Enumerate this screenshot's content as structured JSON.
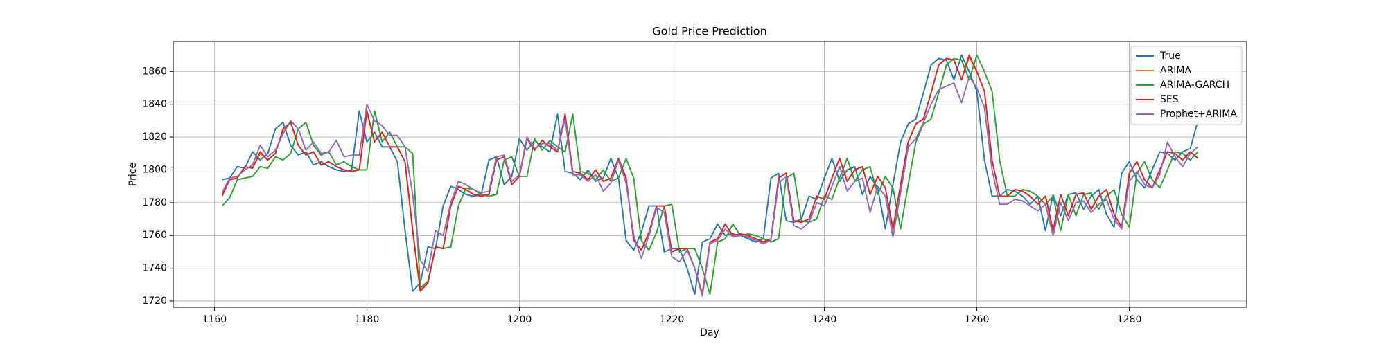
{
  "chart_data": {
    "type": "line",
    "title": "Gold Price Prediction",
    "xlabel": "Day",
    "ylabel": "Price",
    "x": [
      1161,
      1162,
      1163,
      1164,
      1165,
      1166,
      1167,
      1168,
      1169,
      1170,
      1171,
      1172,
      1173,
      1174,
      1175,
      1176,
      1177,
      1178,
      1179,
      1180,
      1181,
      1182,
      1183,
      1184,
      1185,
      1186,
      1187,
      1188,
      1189,
      1190,
      1191,
      1192,
      1193,
      1194,
      1195,
      1196,
      1197,
      1198,
      1199,
      1200,
      1201,
      1202,
      1203,
      1204,
      1205,
      1206,
      1207,
      1208,
      1209,
      1210,
      1211,
      1212,
      1213,
      1214,
      1215,
      1216,
      1217,
      1218,
      1219,
      1220,
      1221,
      1222,
      1223,
      1224,
      1225,
      1226,
      1227,
      1228,
      1229,
      1230,
      1231,
      1232,
      1233,
      1234,
      1235,
      1236,
      1237,
      1238,
      1239,
      1240,
      1241,
      1242,
      1243,
      1244,
      1245,
      1246,
      1247,
      1248,
      1249,
      1250,
      1251,
      1252,
      1253,
      1254,
      1255,
      1256,
      1257,
      1258,
      1259,
      1260,
      1261,
      1262,
      1263,
      1264,
      1265,
      1266,
      1267,
      1268,
      1269,
      1270,
      1271,
      1272,
      1273,
      1274,
      1275,
      1276,
      1277,
      1278,
      1279,
      1280,
      1281,
      1282,
      1283,
      1284,
      1285,
      1286,
      1287,
      1288,
      1289
    ],
    "series": [
      {
        "name": "True",
        "color": "#1f77b4",
        "values": [
          1794,
          1795,
          1802,
          1801,
          1811,
          1806,
          1810,
          1825,
          1829,
          1815,
          1809,
          1811,
          1803,
          1805,
          1802,
          1800,
          1799,
          1800,
          1836,
          1817,
          1823,
          1814,
          1814,
          1805,
          1763,
          1726,
          1731,
          1753,
          1752,
          1778,
          1790,
          1788,
          1785,
          1784,
          1785,
          1806,
          1808,
          1791,
          1796,
          1819,
          1812,
          1818,
          1814,
          1811,
          1834,
          1799,
          1798,
          1794,
          1800,
          1793,
          1795,
          1807,
          1795,
          1757,
          1751,
          1762,
          1778,
          1778,
          1750,
          1752,
          1752,
          1740,
          1724,
          1756,
          1758,
          1767,
          1760,
          1761,
          1760,
          1758,
          1756,
          1758,
          1795,
          1798,
          1769,
          1768,
          1770,
          1784,
          1782,
          1795,
          1807,
          1793,
          1800,
          1802,
          1785,
          1796,
          1789,
          1764,
          1791,
          1817,
          1828,
          1831,
          1847,
          1864,
          1868,
          1867,
          1855,
          1870,
          1860,
          1848,
          1806,
          1784,
          1784,
          1788,
          1787,
          1784,
          1779,
          1784,
          1763,
          1785,
          1772,
          1785,
          1786,
          1776,
          1784,
          1788,
          1773,
          1765,
          1798,
          1805,
          1794,
          1789,
          1800,
          1811,
          1810,
          1806,
          1811,
          1813,
          1830
        ]
      },
      {
        "name": "ARIMA",
        "color": "#ff7f0e",
        "values": [
          1785,
          1794,
          1795,
          1802,
          1801,
          1810,
          1806,
          1810,
          1824,
          1829,
          1815,
          1809,
          1811,
          1803,
          1805,
          1802,
          1800,
          1799,
          1800,
          1835,
          1817,
          1823,
          1814,
          1814,
          1805,
          1764,
          1727,
          1731,
          1753,
          1752,
          1778,
          1790,
          1788,
          1785,
          1784,
          1785,
          1806,
          1808,
          1791,
          1796,
          1819,
          1812,
          1818,
          1814,
          1811,
          1833,
          1799,
          1798,
          1794,
          1800,
          1793,
          1795,
          1807,
          1795,
          1757,
          1751,
          1762,
          1778,
          1778,
          1750,
          1752,
          1752,
          1740,
          1725,
          1756,
          1758,
          1767,
          1760,
          1761,
          1760,
          1758,
          1756,
          1758,
          1795,
          1798,
          1769,
          1768,
          1770,
          1784,
          1782,
          1795,
          1807,
          1793,
          1800,
          1802,
          1785,
          1796,
          1789,
          1764,
          1791,
          1817,
          1828,
          1831,
          1847,
          1864,
          1868,
          1867,
          1855,
          1869,
          1860,
          1848,
          1806,
          1784,
          1784,
          1788,
          1787,
          1784,
          1779,
          1784,
          1763,
          1785,
          1772,
          1785,
          1786,
          1776,
          1784,
          1788,
          1773,
          1765,
          1798,
          1805,
          1794,
          1789,
          1800,
          1811,
          1810,
          1806,
          1811,
          1807
        ]
      },
      {
        "name": "ARIMA-GARCH",
        "color": "#2ca02c",
        "values": [
          1778,
          1783,
          1794,
          1795,
          1796,
          1802,
          1801,
          1808,
          1806,
          1810,
          1825,
          1829,
          1815,
          1809,
          1811,
          1803,
          1805,
          1802,
          1800,
          1800,
          1836,
          1817,
          1823,
          1814,
          1814,
          1810,
          1728,
          1732,
          1753,
          1752,
          1753,
          1778,
          1789,
          1788,
          1785,
          1784,
          1785,
          1806,
          1808,
          1796,
          1796,
          1819,
          1812,
          1818,
          1814,
          1811,
          1834,
          1799,
          1798,
          1794,
          1800,
          1793,
          1795,
          1807,
          1795,
          1757,
          1751,
          1762,
          1778,
          1779,
          1750,
          1752,
          1752,
          1740,
          1724,
          1756,
          1758,
          1767,
          1760,
          1761,
          1760,
          1758,
          1756,
          1758,
          1795,
          1798,
          1769,
          1768,
          1770,
          1784,
          1782,
          1795,
          1807,
          1793,
          1800,
          1802,
          1785,
          1796,
          1789,
          1764,
          1791,
          1817,
          1828,
          1831,
          1847,
          1864,
          1868,
          1867,
          1855,
          1870,
          1860,
          1848,
          1806,
          1784,
          1784,
          1788,
          1787,
          1784,
          1779,
          1784,
          1763,
          1785,
          1772,
          1785,
          1786,
          1776,
          1784,
          1788,
          1773,
          1765,
          1798,
          1805,
          1794,
          1789,
          1800,
          1811,
          1810,
          1806,
          1811
        ]
      },
      {
        "name": "SES",
        "color": "#d62728",
        "values": [
          1784,
          1794,
          1795,
          1802,
          1801,
          1811,
          1806,
          1810,
          1825,
          1829,
          1815,
          1809,
          1811,
          1803,
          1805,
          1802,
          1800,
          1799,
          1800,
          1836,
          1817,
          1823,
          1814,
          1814,
          1805,
          1763,
          1726,
          1731,
          1753,
          1752,
          1778,
          1790,
          1788,
          1785,
          1784,
          1785,
          1806,
          1808,
          1791,
          1796,
          1819,
          1812,
          1818,
          1814,
          1811,
          1834,
          1799,
          1798,
          1794,
          1800,
          1793,
          1795,
          1807,
          1795,
          1757,
          1751,
          1762,
          1778,
          1778,
          1750,
          1752,
          1752,
          1740,
          1724,
          1756,
          1758,
          1767,
          1760,
          1761,
          1760,
          1758,
          1756,
          1758,
          1795,
          1798,
          1769,
          1768,
          1770,
          1784,
          1782,
          1795,
          1807,
          1793,
          1800,
          1802,
          1785,
          1796,
          1789,
          1764,
          1791,
          1817,
          1828,
          1831,
          1847,
          1864,
          1868,
          1867,
          1855,
          1870,
          1860,
          1848,
          1806,
          1784,
          1784,
          1788,
          1787,
          1784,
          1779,
          1784,
          1763,
          1785,
          1772,
          1785,
          1786,
          1776,
          1784,
          1788,
          1773,
          1765,
          1798,
          1805,
          1794,
          1789,
          1800,
          1811,
          1810,
          1806,
          1811,
          1807
        ]
      },
      {
        "name": "Prophet+ARIMA",
        "color": "#9467bd",
        "values": [
          1786,
          1795,
          1796,
          1800,
          1803,
          1815,
          1808,
          1812,
          1822,
          1830,
          1825,
          1812,
          1817,
          1810,
          1811,
          1818,
          1808,
          1809,
          1809,
          1840,
          1830,
          1827,
          1821,
          1821,
          1814,
          1785,
          1745,
          1738,
          1763,
          1760,
          1780,
          1793,
          1791,
          1788,
          1786,
          1787,
          1808,
          1809,
          1793,
          1797,
          1820,
          1813,
          1816,
          1816,
          1812,
          1831,
          1797,
          1797,
          1793,
          1797,
          1787,
          1792,
          1806,
          1792,
          1760,
          1746,
          1760,
          1777,
          1774,
          1747,
          1744,
          1751,
          1740,
          1723,
          1755,
          1757,
          1764,
          1759,
          1760,
          1759,
          1757,
          1755,
          1757,
          1792,
          1796,
          1766,
          1764,
          1768,
          1780,
          1778,
          1790,
          1802,
          1787,
          1793,
          1795,
          1774,
          1790,
          1784,
          1759,
          1786,
          1814,
          1819,
          1829,
          1840,
          1849,
          1851,
          1853,
          1841,
          1857,
          1850,
          1838,
          1800,
          1779,
          1779,
          1782,
          1781,
          1778,
          1775,
          1779,
          1760,
          1780,
          1769,
          1780,
          1781,
          1774,
          1779,
          1782,
          1770,
          1764,
          1793,
          1799,
          1791,
          1789,
          1797,
          1817,
          1808,
          1802,
          1810,
          1814
        ]
      }
    ],
    "xlim": [
      1154.6,
      1295.4
    ],
    "xticks": [
      1160,
      1180,
      1200,
      1220,
      1240,
      1260,
      1280
    ],
    "ylim": [
      1716.2,
      1878.3
    ],
    "yticks": [
      1720,
      1740,
      1760,
      1780,
      1800,
      1820,
      1840,
      1860
    ],
    "grid": true,
    "legend": "upper-right"
  }
}
